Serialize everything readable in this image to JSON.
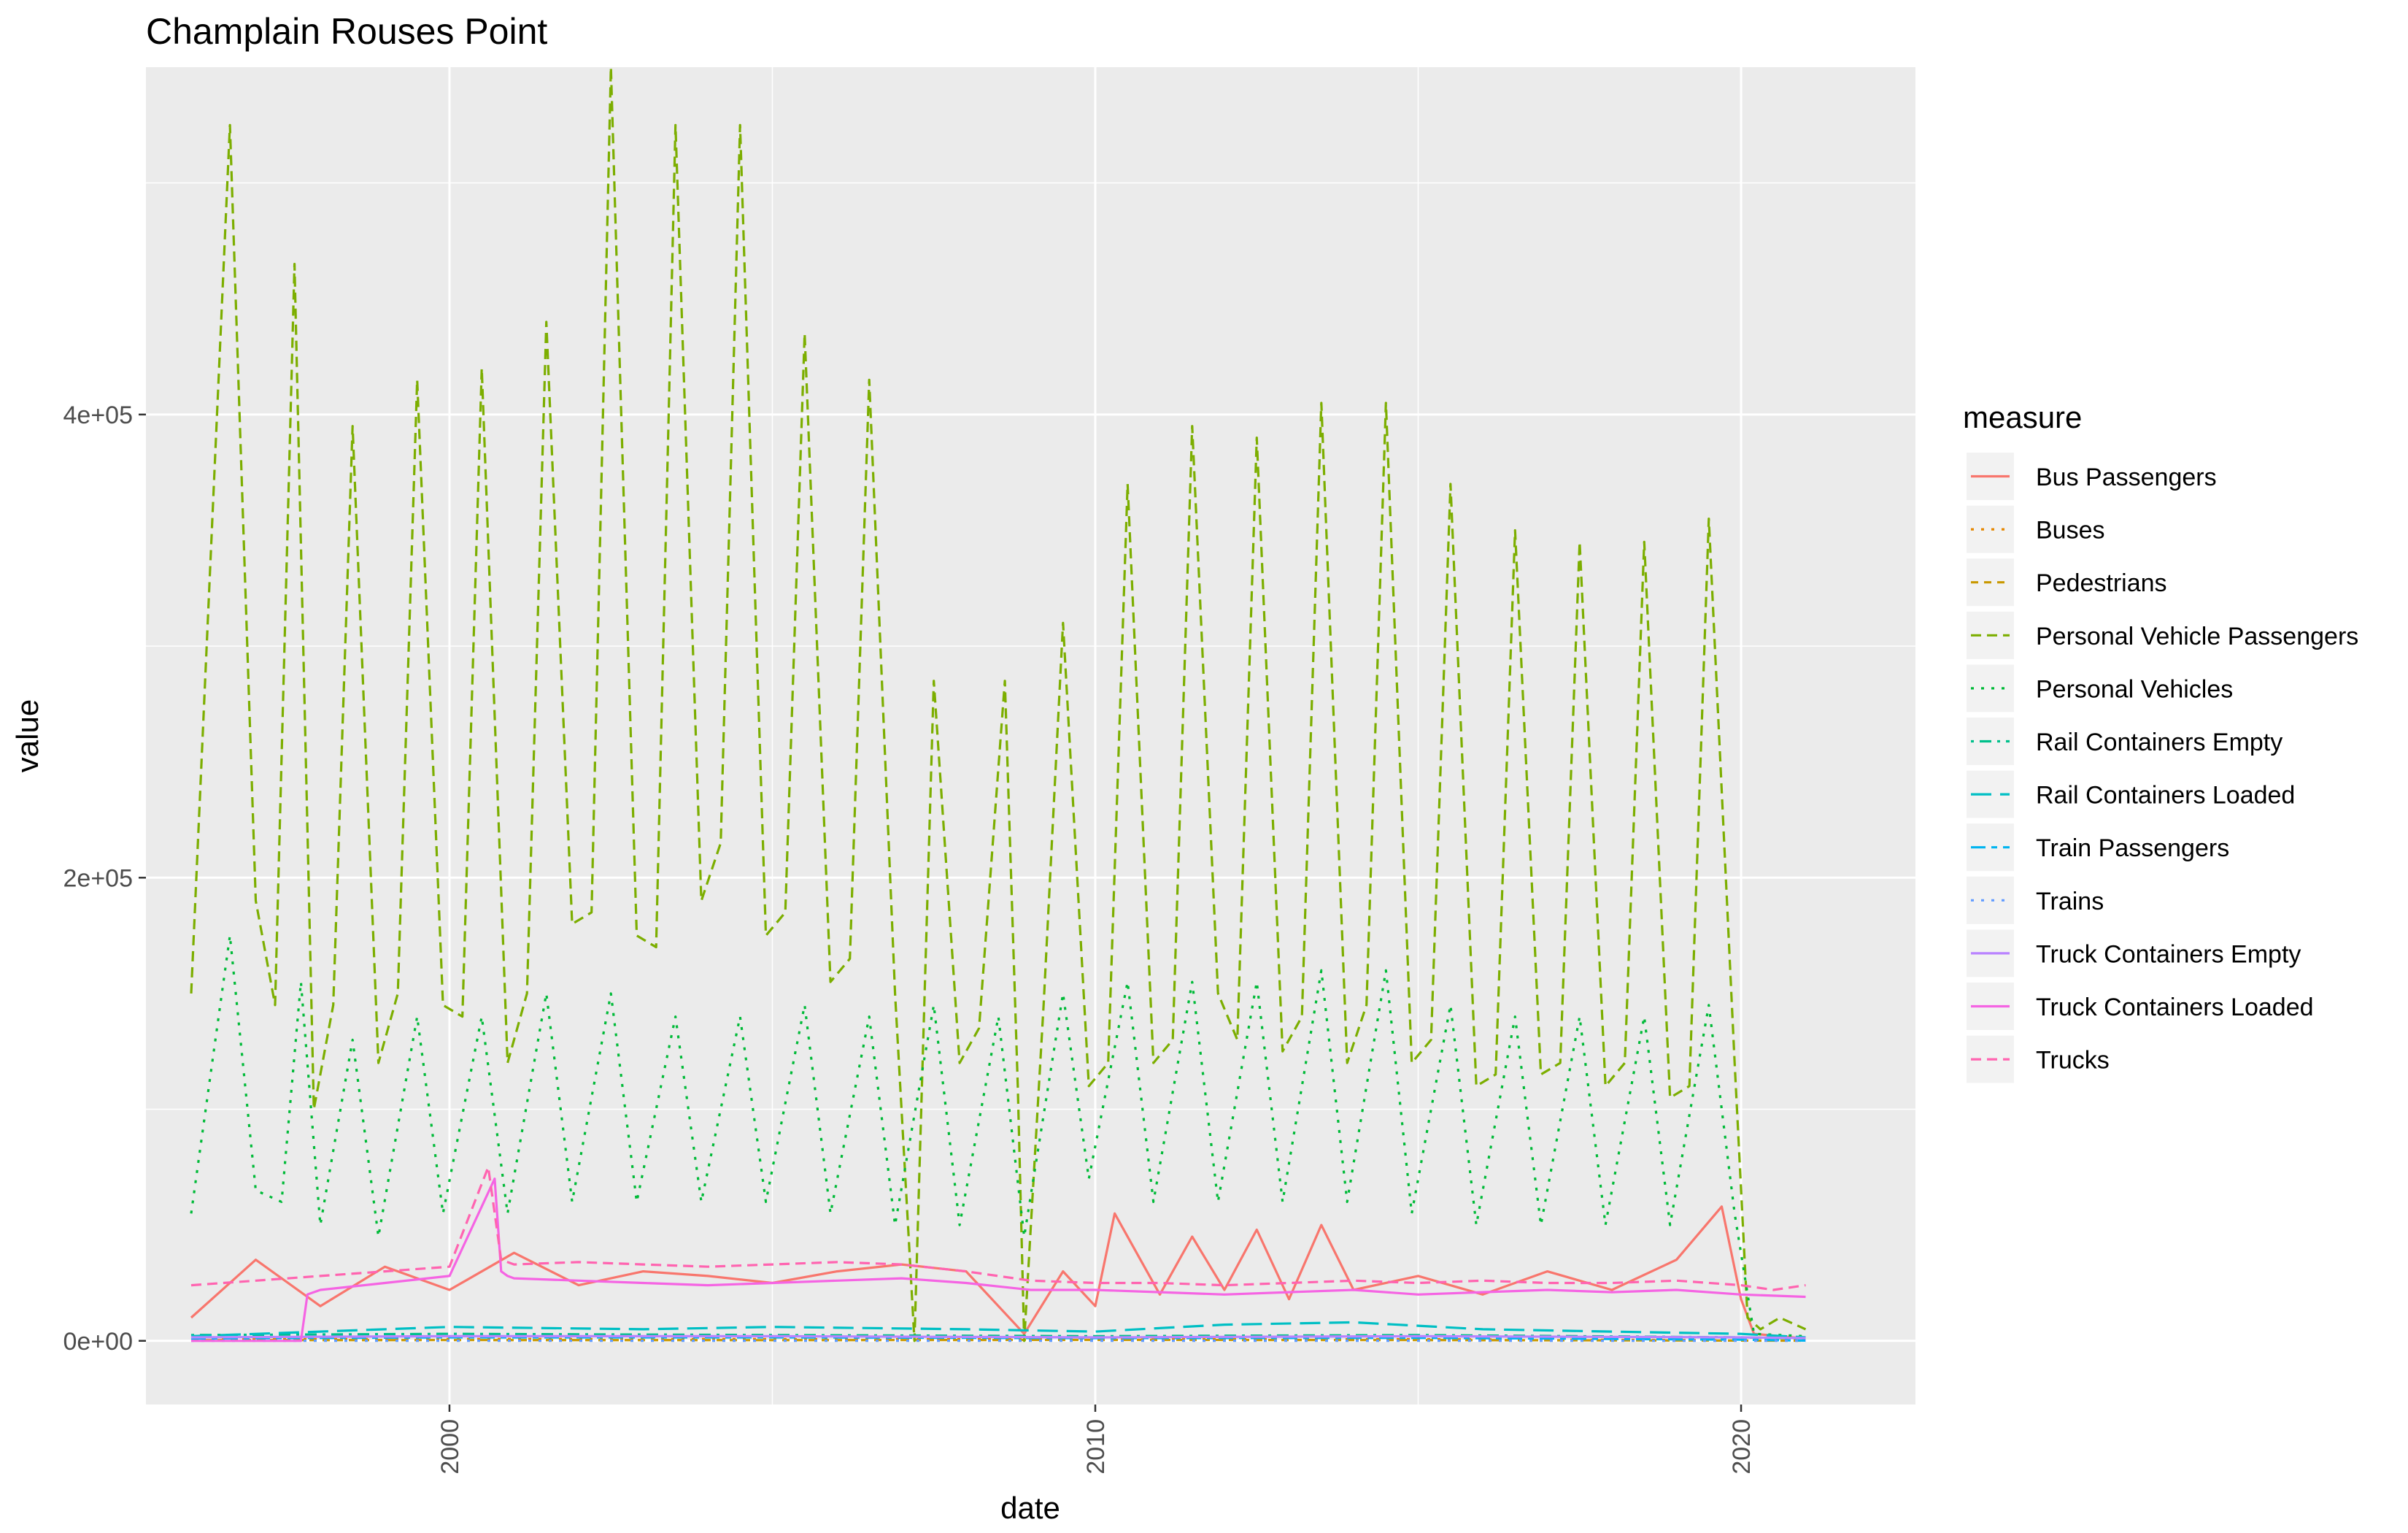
{
  "chart_data": {
    "type": "line",
    "title": "Champlain Rouses Point",
    "xlabel": "date",
    "ylabel": "value",
    "xlim": [
      1995.3,
      2022.7
    ],
    "ylim": [
      -27500,
      550000
    ],
    "x_ticks": [
      2000,
      2010,
      2020
    ],
    "x_tick_labels": [
      "2000",
      "2010",
      "2020"
    ],
    "y_ticks": [
      0,
      200000,
      400000
    ],
    "y_tick_labels": [
      "0e+00",
      "2e+05",
      "4e+05"
    ],
    "x_minor": [
      1995,
      2005,
      2015
    ],
    "y_minor": [
      100000,
      300000,
      500000
    ],
    "grid": true,
    "legend_title": "measure",
    "legend_position": "right",
    "series": [
      {
        "name": "Bus Passengers",
        "color": "#F8766D",
        "dash": "solid",
        "x": [
          1996,
          1997,
          1998,
          1999,
          2000,
          2001,
          2002,
          2003,
          2004,
          2005,
          2006,
          2007,
          2008,
          2008.9,
          2009.5,
          2010,
          2010.3,
          2011,
          2011.5,
          2012,
          2012.5,
          2013,
          2013.5,
          2014,
          2015,
          2016,
          2017,
          2018,
          2019,
          2019.7,
          2020,
          2020.2,
          2021
        ],
        "values": [
          10000,
          35000,
          15000,
          32000,
          22000,
          38000,
          24000,
          30000,
          28000,
          25000,
          30000,
          33000,
          30000,
          3000,
          30000,
          15000,
          55000,
          20000,
          45000,
          22000,
          48000,
          18000,
          50000,
          22000,
          28000,
          20000,
          30000,
          22000,
          35000,
          58000,
          18000,
          3000,
          1000
        ]
      },
      {
        "name": "Buses",
        "color": "#E58700",
        "dash": "dotted",
        "x": [
          1996,
          2000,
          2005,
          2010,
          2015,
          2020,
          2021
        ],
        "values": [
          700,
          800,
          750,
          650,
          700,
          250,
          50
        ]
      },
      {
        "name": "Pedestrians",
        "color": "#C99800",
        "dash": "shortdash",
        "x": [
          1996,
          2000,
          2005,
          2010,
          2015,
          2020,
          2021
        ],
        "values": [
          300,
          350,
          300,
          400,
          350,
          100,
          50
        ]
      },
      {
        "name": "Personal Vehicle Passengers",
        "color": "#7CAE00",
        "dash": "dashed",
        "x": [
          1996,
          1996.6,
          1997,
          1997.3,
          1997.6,
          1997.9,
          1998.2,
          1998.5,
          1998.9,
          1999.2,
          1999.5,
          1999.9,
          2000.2,
          2000.5,
          2000.9,
          2001.2,
          2001.5,
          2001.9,
          2002.2,
          2002.5,
          2002.9,
          2003.2,
          2003.5,
          2003.9,
          2004.2,
          2004.5,
          2004.9,
          2005.2,
          2005.5,
          2005.9,
          2006.2,
          2006.5,
          2006.9,
          2007.2,
          2007.5,
          2007.9,
          2008.2,
          2008.6,
          2008.8,
          2008.9,
          2009.2,
          2009.5,
          2009.9,
          2010.2,
          2010.5,
          2010.9,
          2011.2,
          2011.5,
          2011.9,
          2012.2,
          2012.5,
          2012.9,
          2013.2,
          2013.5,
          2013.9,
          2014.2,
          2014.5,
          2014.9,
          2015.2,
          2015.5,
          2015.9,
          2016.2,
          2016.5,
          2016.9,
          2017.2,
          2017.5,
          2017.9,
          2018.2,
          2018.5,
          2018.9,
          2019.2,
          2019.5,
          2019.9,
          2020.1,
          2020.3,
          2020.6,
          2021
        ],
        "values": [
          150000,
          525000,
          190000,
          145000,
          465000,
          100000,
          145000,
          395000,
          120000,
          150000,
          415000,
          145000,
          140000,
          420000,
          120000,
          150000,
          440000,
          180000,
          185000,
          550000,
          175000,
          170000,
          525000,
          190000,
          215000,
          525000,
          175000,
          185000,
          435000,
          155000,
          165000,
          415000,
          150000,
          0,
          285000,
          120000,
          135000,
          285000,
          110000,
          0,
          145000,
          310000,
          110000,
          120000,
          370000,
          120000,
          130000,
          395000,
          150000,
          130000,
          390000,
          125000,
          140000,
          405000,
          120000,
          145000,
          405000,
          120000,
          130000,
          370000,
          110000,
          115000,
          350000,
          115000,
          120000,
          345000,
          110000,
          120000,
          345000,
          105000,
          110000,
          355000,
          120000,
          10000,
          5000,
          10000,
          5000
        ]
      },
      {
        "name": "Personal Vehicles",
        "color": "#00BA38",
        "dash": "dotted",
        "x": [
          1996,
          1996.6,
          1997,
          1997.4,
          1997.7,
          1998,
          1998.5,
          1998.9,
          1999.5,
          1999.9,
          2000.5,
          2000.9,
          2001.5,
          2001.9,
          2002.5,
          2002.9,
          2003.5,
          2003.9,
          2004.5,
          2004.9,
          2005.5,
          2005.9,
          2006.5,
          2006.9,
          2007.5,
          2007.9,
          2008.5,
          2008.9,
          2009.5,
          2009.9,
          2010.5,
          2010.9,
          2011.5,
          2011.9,
          2012.5,
          2012.9,
          2013.5,
          2013.9,
          2014.5,
          2014.9,
          2015.5,
          2015.9,
          2016.5,
          2016.9,
          2017.5,
          2017.9,
          2018.5,
          2018.9,
          2019.5,
          2019.9,
          2020.2,
          2021
        ],
        "values": [
          55000,
          175000,
          65000,
          60000,
          155000,
          50000,
          130000,
          45000,
          140000,
          55000,
          140000,
          55000,
          150000,
          60000,
          150000,
          60000,
          140000,
          60000,
          140000,
          60000,
          145000,
          55000,
          140000,
          50000,
          145000,
          50000,
          140000,
          45000,
          150000,
          70000,
          155000,
          60000,
          155000,
          60000,
          155000,
          60000,
          160000,
          60000,
          160000,
          55000,
          145000,
          50000,
          140000,
          50000,
          140000,
          50000,
          140000,
          50000,
          145000,
          55000,
          3000,
          2000
        ]
      },
      {
        "name": "Rail Containers Empty",
        "color": "#00C08B",
        "dash": "dotdash",
        "x": [
          1996,
          2000,
          2005,
          2010,
          2015,
          2020,
          2021
        ],
        "values": [
          2500,
          3000,
          2500,
          2000,
          2500,
          1500,
          1000
        ]
      },
      {
        "name": "Rail Containers Loaded",
        "color": "#00BFC4",
        "dash": "longdash",
        "x": [
          1996,
          1998,
          2000,
          2003,
          2005,
          2008,
          2010,
          2012,
          2014,
          2016,
          2018,
          2020,
          2021
        ],
        "values": [
          2000,
          4000,
          6000,
          5000,
          6000,
          5000,
          4000,
          7000,
          8000,
          5000,
          4000,
          3000,
          1500
        ]
      },
      {
        "name": "Train Passengers",
        "color": "#00B4F0",
        "dash": "twodash",
        "x": [
          1996,
          2000,
          2005,
          2010,
          2015,
          2020,
          2021
        ],
        "values": [
          1000,
          1500,
          1500,
          1200,
          1300,
          500,
          100
        ]
      },
      {
        "name": "Trains",
        "color": "#619CFF",
        "dash": "dotted",
        "x": [
          1996,
          2000,
          2005,
          2010,
          2015,
          2020,
          2021
        ],
        "values": [
          60,
          60,
          60,
          60,
          60,
          40,
          30
        ]
      },
      {
        "name": "Truck Containers Empty",
        "color": "#B983FF",
        "dash": "solid",
        "x": [
          1996,
          2000,
          2005,
          2010,
          2015,
          2020,
          2021
        ],
        "values": [
          1500,
          2000,
          2000,
          1500,
          2000,
          1500,
          1200
        ]
      },
      {
        "name": "Truck Containers Loaded",
        "color": "#F564E3",
        "dash": "solid",
        "x": [
          1996,
          1997,
          1997.7,
          1997.8,
          1998,
          1999,
          2000,
          2000.7,
          2000.8,
          2000.9,
          2001,
          2002,
          2003,
          2004,
          2005,
          2006,
          2007,
          2008,
          2009,
          2010,
          2011,
          2012,
          2013,
          2014,
          2015,
          2016,
          2017,
          2018,
          2019,
          2020,
          2021
        ],
        "values": [
          0,
          0,
          0,
          20000,
          22000,
          25000,
          28000,
          70000,
          30000,
          28000,
          27000,
          26000,
          25000,
          24000,
          25000,
          26000,
          27000,
          25000,
          22000,
          22000,
          21000,
          20000,
          21000,
          22000,
          20000,
          21000,
          22000,
          21000,
          22000,
          20000,
          19000
        ]
      },
      {
        "name": "Trucks",
        "color": "#FF64B0",
        "dash": "dashed",
        "x": [
          1996,
          1997,
          1998,
          1999,
          2000,
          2000.6,
          2000.8,
          2001,
          2002,
          2003,
          2004,
          2005,
          2006,
          2007,
          2008,
          2009,
          2010,
          2011,
          2012,
          2013,
          2014,
          2015,
          2016,
          2017,
          2018,
          2019,
          2020,
          2020.5,
          2021
        ],
        "values": [
          24000,
          26000,
          28000,
          30000,
          32000,
          75000,
          35000,
          33000,
          34000,
          33000,
          32000,
          33000,
          34000,
          33000,
          30000,
          26000,
          25000,
          25000,
          24000,
          25000,
          26000,
          25000,
          26000,
          25000,
          25000,
          26000,
          24000,
          22000,
          24000
        ]
      }
    ]
  }
}
